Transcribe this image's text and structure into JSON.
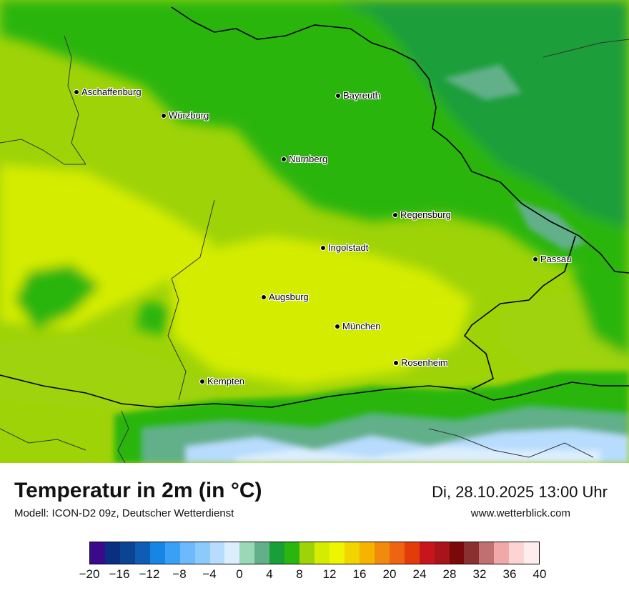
{
  "title": "Temperatur in 2m (in °C)",
  "model": "Modell: ICON-D2 09z, Deutscher Wetterdienst",
  "datetime": "Di, 28.10.2025 13:00 Uhr",
  "website": "www.wetterblick.com",
  "cities": [
    {
      "name": "Aschaffenburg"
    },
    {
      "name": "Würzburg"
    },
    {
      "name": "Bayreuth"
    },
    {
      "name": "Nürnberg"
    },
    {
      "name": "Regensburg"
    },
    {
      "name": "Ingolstadt"
    },
    {
      "name": "Passau"
    },
    {
      "name": "Augsburg"
    },
    {
      "name": "München"
    },
    {
      "name": "Rosenheim"
    },
    {
      "name": "Kempten"
    }
  ],
  "colorbar": {
    "min": -20,
    "max": 40,
    "step": 2,
    "tick_labels": [
      "−20",
      "−16",
      "−12",
      "−8",
      "−4",
      "0",
      "4",
      "8",
      "12",
      "16",
      "20",
      "24",
      "28",
      "32",
      "36",
      "40"
    ],
    "colors": [
      "#3a0a8c",
      "#0a2f80",
      "#0c4392",
      "#0f5cb4",
      "#1685e4",
      "#3aa0f5",
      "#6cb9fb",
      "#8dcafc",
      "#b8dcfd",
      "#dceefe",
      "#9ad8b8",
      "#62b08a",
      "#1a9e3a",
      "#2ab50f",
      "#9ed308",
      "#d4ec00",
      "#eef500",
      "#f2d400",
      "#f4b400",
      "#f38a10",
      "#ee6410",
      "#e23c0a",
      "#c8141c",
      "#a8141a",
      "#7a0a0a",
      "#8a3030",
      "#c07070",
      "#f0a8a8",
      "#fcd4d4",
      "#ffecec"
    ]
  }
}
